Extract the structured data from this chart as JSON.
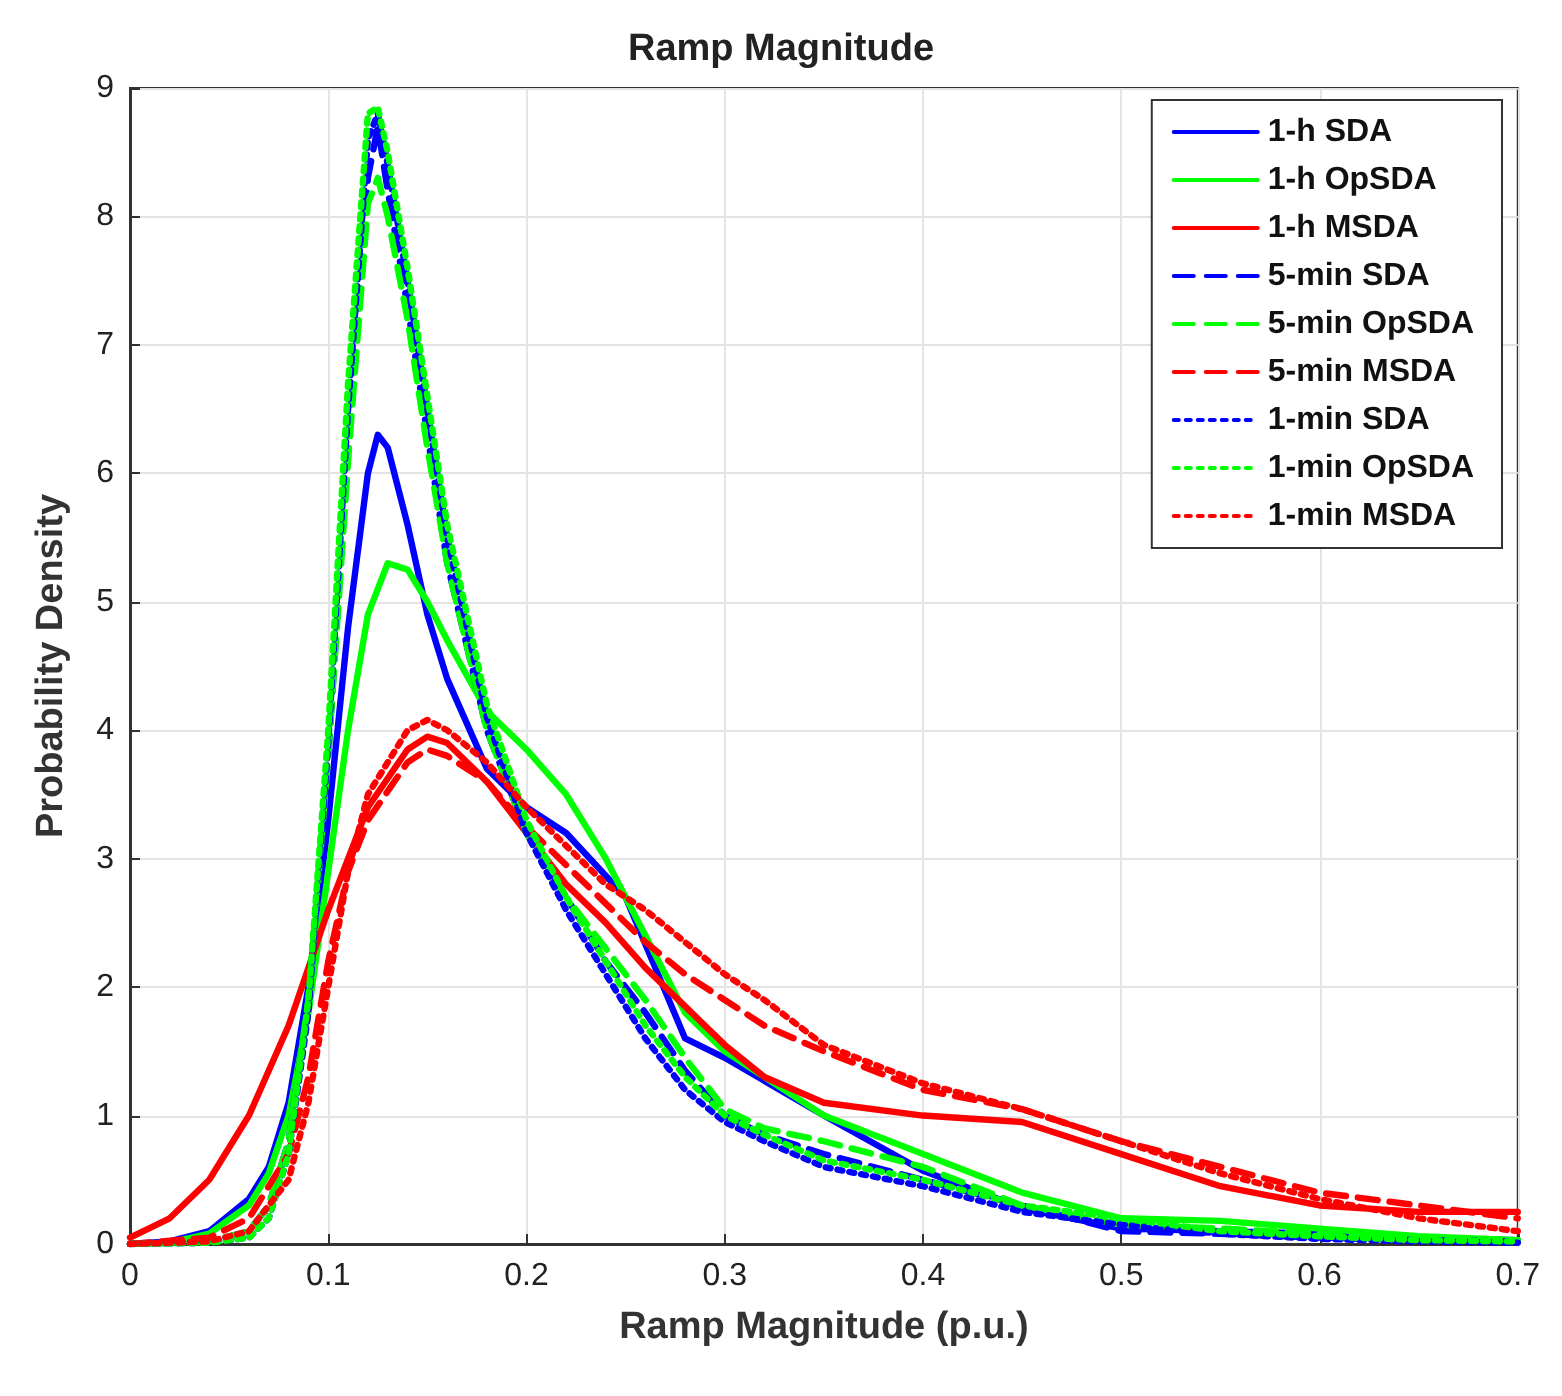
{
  "chart_data": {
    "type": "line",
    "title": "Ramp Magnitude",
    "xlabel": "Ramp Magnitude (p.u.)",
    "ylabel": "Probability Density",
    "xlim": [
      0,
      0.7
    ],
    "xticks": [
      0,
      0.1,
      0.2,
      0.3,
      0.4,
      0.5,
      0.6,
      0.7
    ],
    "ylim": [
      0,
      9
    ],
    "yticks": [
      0,
      1,
      2,
      3,
      4,
      5,
      6,
      7,
      8,
      9
    ],
    "grid": true,
    "legend": "top right",
    "marker": "none",
    "series": [
      {
        "name": "1-h SDA",
        "color": "#0000ff",
        "line_style": "solid",
        "x": [
          0,
          0.02,
          0.04,
          0.06,
          0.07,
          0.08,
          0.09,
          0.1,
          0.11,
          0.12,
          0.125,
          0.13,
          0.14,
          0.15,
          0.16,
          0.18,
          0.2,
          0.22,
          0.25,
          0.28,
          0.3,
          0.35,
          0.4,
          0.45,
          0.5,
          0.55,
          0.6,
          0.65,
          0.7
        ],
        "values": [
          0,
          0.02,
          0.1,
          0.35,
          0.6,
          1.1,
          2.0,
          3.3,
          4.8,
          6.0,
          6.3,
          6.2,
          5.6,
          4.9,
          4.4,
          3.7,
          3.4,
          3.2,
          2.7,
          1.6,
          1.45,
          1.0,
          0.57,
          0.28,
          0.12,
          0.1,
          0.08,
          0.05,
          0.03
        ]
      },
      {
        "name": "1-h OpSDA",
        "color": "#00ff00",
        "line_style": "solid",
        "x": [
          0,
          0.02,
          0.04,
          0.06,
          0.07,
          0.08,
          0.09,
          0.1,
          0.11,
          0.12,
          0.13,
          0.14,
          0.15,
          0.16,
          0.18,
          0.2,
          0.22,
          0.24,
          0.26,
          0.28,
          0.3,
          0.35,
          0.4,
          0.45,
          0.5,
          0.55,
          0.6,
          0.65,
          0.7
        ],
        "values": [
          0,
          0.01,
          0.08,
          0.3,
          0.55,
          1.0,
          1.8,
          2.9,
          4.0,
          4.9,
          5.3,
          5.25,
          5.0,
          4.7,
          4.15,
          3.85,
          3.5,
          3.0,
          2.4,
          1.8,
          1.5,
          1.0,
          0.7,
          0.4,
          0.2,
          0.18,
          0.12,
          0.06,
          0.03
        ]
      },
      {
        "name": "1-h MSDA",
        "color": "#ff0000",
        "line_style": "solid",
        "x": [
          0,
          0.02,
          0.04,
          0.06,
          0.08,
          0.1,
          0.12,
          0.14,
          0.15,
          0.16,
          0.18,
          0.2,
          0.22,
          0.24,
          0.26,
          0.28,
          0.3,
          0.32,
          0.35,
          0.4,
          0.45,
          0.5,
          0.55,
          0.6,
          0.65,
          0.7
        ],
        "values": [
          0.05,
          0.2,
          0.5,
          1.0,
          1.7,
          2.6,
          3.4,
          3.85,
          3.95,
          3.9,
          3.6,
          3.2,
          2.8,
          2.5,
          2.15,
          1.85,
          1.55,
          1.3,
          1.1,
          1.0,
          0.95,
          0.7,
          0.45,
          0.3,
          0.25,
          0.25
        ]
      },
      {
        "name": "5-min SDA",
        "color": "#0000ff",
        "line_style": "dashed",
        "x": [
          0,
          0.04,
          0.06,
          0.07,
          0.08,
          0.09,
          0.1,
          0.11,
          0.12,
          0.125,
          0.13,
          0.14,
          0.15,
          0.16,
          0.18,
          0.2,
          0.22,
          0.24,
          0.26,
          0.28,
          0.3,
          0.32,
          0.35,
          0.4,
          0.45,
          0.5,
          0.55,
          0.6,
          0.65,
          0.7
        ],
        "values": [
          0,
          0.02,
          0.1,
          0.3,
          0.8,
          1.9,
          3.8,
          6.2,
          8.3,
          8.7,
          8.2,
          7.3,
          6.3,
          5.3,
          4.0,
          3.2,
          2.7,
          2.2,
          1.8,
          1.35,
          1.0,
          0.85,
          0.7,
          0.5,
          0.3,
          0.1,
          0.08,
          0.05,
          0.03,
          0.02
        ]
      },
      {
        "name": "5-min OpSDA",
        "color": "#00ff00",
        "line_style": "dashed",
        "x": [
          0,
          0.04,
          0.06,
          0.07,
          0.08,
          0.09,
          0.1,
          0.11,
          0.12,
          0.125,
          0.13,
          0.14,
          0.15,
          0.16,
          0.18,
          0.2,
          0.22,
          0.24,
          0.26,
          0.28,
          0.3,
          0.32,
          0.35,
          0.4,
          0.45,
          0.5,
          0.55,
          0.6,
          0.65,
          0.7
        ],
        "values": [
          0,
          0.02,
          0.1,
          0.3,
          0.8,
          1.9,
          3.8,
          6.1,
          8.1,
          8.3,
          8.0,
          7.2,
          6.2,
          5.3,
          4.0,
          3.2,
          2.7,
          2.3,
          1.9,
          1.45,
          1.05,
          0.9,
          0.8,
          0.6,
          0.3,
          0.15,
          0.12,
          0.08,
          0.05,
          0.03
        ]
      },
      {
        "name": "5-min MSDA",
        "color": "#ff0000",
        "line_style": "dashed",
        "x": [
          0,
          0.04,
          0.06,
          0.08,
          0.09,
          0.1,
          0.11,
          0.12,
          0.14,
          0.15,
          0.16,
          0.18,
          0.2,
          0.22,
          0.24,
          0.26,
          0.28,
          0.3,
          0.32,
          0.35,
          0.4,
          0.45,
          0.5,
          0.55,
          0.6,
          0.65,
          0.7
        ],
        "values": [
          0,
          0.05,
          0.2,
          0.7,
          1.3,
          2.2,
          2.9,
          3.3,
          3.75,
          3.85,
          3.8,
          3.6,
          3.25,
          2.95,
          2.65,
          2.35,
          2.1,
          1.9,
          1.7,
          1.5,
          1.2,
          1.05,
          0.8,
          0.6,
          0.4,
          0.3,
          0.2
        ]
      },
      {
        "name": "1-min SDA",
        "color": "#0000ff",
        "line_style": "dotted",
        "x": [
          0,
          0.04,
          0.06,
          0.07,
          0.08,
          0.09,
          0.1,
          0.11,
          0.12,
          0.125,
          0.13,
          0.14,
          0.15,
          0.16,
          0.18,
          0.2,
          0.22,
          0.24,
          0.26,
          0.28,
          0.3,
          0.32,
          0.35,
          0.4,
          0.45,
          0.5,
          0.55,
          0.6,
          0.65,
          0.7
        ],
        "values": [
          0,
          0.01,
          0.05,
          0.2,
          0.7,
          1.8,
          3.9,
          6.5,
          8.6,
          8.8,
          8.4,
          7.5,
          6.5,
          5.5,
          4.1,
          3.2,
          2.6,
          2.1,
          1.6,
          1.2,
          0.95,
          0.8,
          0.6,
          0.45,
          0.25,
          0.15,
          0.08,
          0.04,
          0.02,
          0.01
        ]
      },
      {
        "name": "1-min OpSDA",
        "color": "#00ff00",
        "line_style": "dotted",
        "x": [
          0,
          0.04,
          0.06,
          0.07,
          0.08,
          0.09,
          0.1,
          0.11,
          0.12,
          0.125,
          0.13,
          0.14,
          0.15,
          0.16,
          0.18,
          0.2,
          0.22,
          0.24,
          0.26,
          0.28,
          0.3,
          0.32,
          0.35,
          0.4,
          0.45,
          0.5,
          0.55,
          0.6,
          0.65,
          0.7
        ],
        "values": [
          0,
          0.01,
          0.05,
          0.2,
          0.7,
          1.9,
          4.0,
          6.7,
          8.8,
          8.85,
          8.5,
          7.6,
          6.6,
          5.6,
          4.2,
          3.3,
          2.7,
          2.2,
          1.7,
          1.3,
          1.0,
          0.85,
          0.65,
          0.5,
          0.3,
          0.2,
          0.1,
          0.06,
          0.03,
          0.02
        ]
      },
      {
        "name": "1-min MSDA",
        "color": "#ff0000",
        "line_style": "dotted",
        "x": [
          0,
          0.04,
          0.06,
          0.08,
          0.09,
          0.1,
          0.11,
          0.12,
          0.14,
          0.15,
          0.16,
          0.18,
          0.2,
          0.22,
          0.24,
          0.26,
          0.28,
          0.3,
          0.32,
          0.35,
          0.4,
          0.45,
          0.5,
          0.55,
          0.6,
          0.65,
          0.7
        ],
        "values": [
          0,
          0.02,
          0.1,
          0.5,
          1.1,
          2.0,
          2.9,
          3.5,
          4.0,
          4.08,
          4.0,
          3.75,
          3.4,
          3.1,
          2.8,
          2.6,
          2.35,
          2.1,
          1.9,
          1.55,
          1.25,
          1.05,
          0.8,
          0.55,
          0.35,
          0.2,
          0.1
        ]
      }
    ]
  }
}
